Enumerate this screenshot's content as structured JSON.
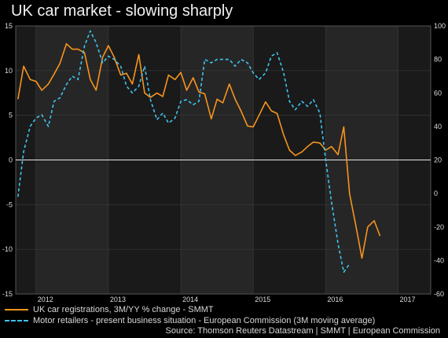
{
  "chart_data": {
    "type": "line",
    "title": "UK car market - slowing sharply",
    "x_ticks": [
      "2012",
      "2013",
      "2014",
      "2015",
      "2016",
      "2017"
    ],
    "y_left": {
      "ticks": [
        15,
        10,
        5,
        0,
        -5,
        -10,
        -15
      ],
      "range": [
        -15,
        15
      ]
    },
    "y_right": {
      "ticks": [
        100,
        80,
        60,
        40,
        20,
        0,
        -20,
        -40,
        -60
      ],
      "range": [
        -60,
        100
      ]
    },
    "series": [
      {
        "name": "UK car registrations, 3M/YY % change - SMMT",
        "axis": "left",
        "color": "#f7941d",
        "style": "solid",
        "x": [
          2011.75,
          2011.83,
          2011.92,
          2012.0,
          2012.08,
          2012.17,
          2012.25,
          2012.33,
          2012.42,
          2012.5,
          2012.58,
          2012.67,
          2012.75,
          2012.83,
          2012.92,
          2013.0,
          2013.08,
          2013.17,
          2013.25,
          2013.33,
          2013.42,
          2013.5,
          2013.58,
          2013.67,
          2013.75,
          2013.83,
          2013.92,
          2014.0,
          2014.08,
          2014.17,
          2014.25,
          2014.33,
          2014.42,
          2014.5,
          2014.58,
          2014.67,
          2014.75,
          2014.83,
          2014.92,
          2015.0,
          2015.08,
          2015.17,
          2015.25,
          2015.33,
          2015.42,
          2015.5,
          2015.58,
          2015.67,
          2015.75,
          2015.83,
          2015.92,
          2016.0,
          2016.08,
          2016.17,
          2016.25,
          2016.33,
          2016.42,
          2016.5,
          2016.58,
          2016.67,
          2016.75,
          2016.83,
          2016.92,
          2017.0,
          2017.08,
          2017.17,
          2017.25
        ],
        "values": [
          6.8,
          10.5,
          9.0,
          8.8,
          7.8,
          8.5,
          9.6,
          10.8,
          13.0,
          12.4,
          12.4,
          12.0,
          9.0,
          7.8,
          11.5,
          12.8,
          11.5,
          9.5,
          9.7,
          8.5,
          11.8,
          7.5,
          7.0,
          7.5,
          7.1,
          9.5,
          9.0,
          9.8,
          7.8,
          9.2,
          7.6,
          7.4,
          4.6,
          6.8,
          6.4,
          8.5,
          6.8,
          5.5,
          3.8,
          3.7,
          5.0,
          6.5,
          5.5,
          5.2,
          2.8,
          1.1,
          0.5,
          0.9,
          1.5,
          2.0,
          1.9,
          1.1,
          1.5,
          0.6,
          3.7,
          -3.8,
          -7.5,
          -11.0,
          -7.5,
          -6.8,
          -8.5,
          null,
          null,
          null,
          null,
          null,
          null
        ]
      },
      {
        "name": "Motor retailers - present business situation - European Commission (3M moving average)",
        "axis": "right",
        "color": "#3fc3ee",
        "style": "dashed",
        "x": [
          2011.75,
          2011.83,
          2011.92,
          2012.0,
          2012.08,
          2012.17,
          2012.25,
          2012.33,
          2012.42,
          2012.5,
          2012.58,
          2012.67,
          2012.75,
          2012.83,
          2012.92,
          2013.0,
          2013.08,
          2013.17,
          2013.25,
          2013.33,
          2013.42,
          2013.5,
          2013.58,
          2013.67,
          2013.75,
          2013.83,
          2013.92,
          2014.0,
          2014.08,
          2014.17,
          2014.25,
          2014.33,
          2014.42,
          2014.5,
          2014.58,
          2014.67,
          2014.75,
          2014.83,
          2014.92,
          2015.0,
          2015.08,
          2015.17,
          2015.25,
          2015.33,
          2015.42,
          2015.5,
          2015.58,
          2015.67,
          2015.75,
          2015.83,
          2015.92,
          2016.0,
          2016.08,
          2016.17,
          2016.25,
          2016.33,
          2016.42,
          2016.5,
          2016.58,
          2016.67,
          2016.75,
          2016.83,
          2016.92,
          2017.0,
          2017.08,
          2017.17,
          2017.25
        ],
        "values": [
          -2,
          25,
          40,
          45,
          47,
          40,
          55,
          57,
          65,
          70,
          68,
          88,
          97,
          90,
          78,
          82,
          80,
          76,
          64,
          60,
          64,
          76,
          56,
          44,
          48,
          42,
          45,
          55,
          56,
          53,
          55,
          80,
          78,
          80,
          80,
          80,
          76,
          80,
          78,
          72,
          68,
          72,
          82,
          84,
          72,
          55,
          50,
          55,
          52,
          56,
          48,
          20,
          -5,
          -30,
          -47,
          -42,
          null,
          null,
          null,
          null,
          null,
          null,
          null,
          null,
          null,
          null,
          null
        ]
      }
    ],
    "grid": true,
    "legend_position": "bottom-left",
    "source": "Source: Thomson Reuters Datastream | SMMT | European Commission"
  }
}
